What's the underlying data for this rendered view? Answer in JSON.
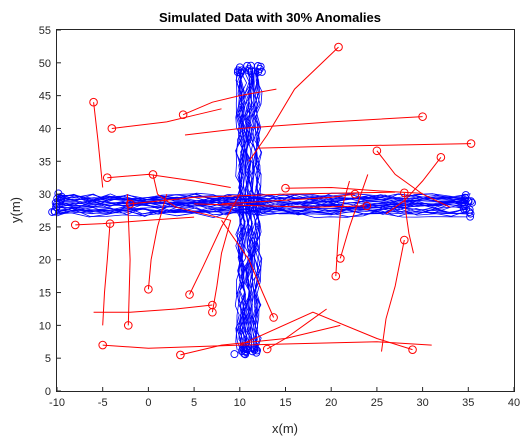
{
  "chart_data": {
    "type": "line",
    "title": "Simulated Data with 30% Anomalies",
    "xlabel": "x(m)",
    "ylabel": "y(m)",
    "xlim": [
      -10,
      40
    ],
    "ylim": [
      0,
      55
    ],
    "xticks": [
      -10,
      -5,
      0,
      5,
      10,
      15,
      20,
      25,
      30,
      35,
      40
    ],
    "yticks": [
      0,
      5,
      10,
      15,
      20,
      25,
      30,
      35,
      40,
      45,
      50,
      55
    ],
    "grid": false,
    "colors": {
      "normal": "#0000ff",
      "anomaly": "#ff0000"
    },
    "normal_tracks": {
      "description_of_pattern": "cross",
      "horizontal": {
        "x_range": [
          -10,
          35
        ],
        "y_center": 28.5,
        "y_spread": 1.5,
        "count": 30
      },
      "vertical": {
        "y_range": [
          6,
          49
        ],
        "x_center": 11,
        "x_spread": 1.2,
        "count": 30
      }
    },
    "anomaly_tracks": [
      {
        "x": [
          -6,
          -5.5,
          -5
        ],
        "y": [
          44,
          38,
          31
        ]
      },
      {
        "x": [
          -4,
          2,
          5,
          8
        ],
        "y": [
          40,
          41,
          42,
          43
        ]
      },
      {
        "x": [
          -4.5,
          0,
          5,
          9
        ],
        "y": [
          32.5,
          33,
          32,
          31
        ]
      },
      {
        "x": [
          -4.2,
          -4.5,
          -4.8,
          -5
        ],
        "y": [
          25.5,
          20,
          15,
          10
        ]
      },
      {
        "x": [
          -5,
          0,
          10,
          25,
          31
        ],
        "y": [
          7,
          6.5,
          7,
          7.5,
          7
        ]
      },
      {
        "x": [
          -2.2,
          -2,
          -2.3
        ],
        "y": [
          10,
          20,
          30
        ]
      },
      {
        "x": [
          -2,
          5,
          15,
          27
        ],
        "y": [
          28.5,
          29.5,
          30,
          30.3
        ]
      },
      {
        "x": [
          0,
          0.3,
          1,
          2
        ],
        "y": [
          15.5,
          20,
          25,
          30
        ]
      },
      {
        "x": [
          0.5,
          1,
          3,
          6,
          9
        ],
        "y": [
          33,
          30,
          28,
          27,
          26
        ]
      },
      {
        "x": [
          3.8,
          7,
          10,
          14
        ],
        "y": [
          42.1,
          44,
          45,
          46
        ]
      },
      {
        "x": [
          4.5,
          6,
          8,
          10
        ],
        "y": [
          14.7,
          19,
          25,
          30
        ]
      },
      {
        "x": [
          7,
          7.5,
          8,
          9
        ],
        "y": [
          12,
          16,
          21,
          26
        ]
      },
      {
        "x": [
          7,
          3,
          -2,
          -6
        ],
        "y": [
          13.1,
          12.5,
          12,
          12
        ]
      },
      {
        "x": [
          13.7,
          12.5,
          11,
          8
        ],
        "y": [
          11.2,
          15,
          20,
          26
        ]
      },
      {
        "x": [
          15,
          20,
          25,
          30
        ],
        "y": [
          30.9,
          31,
          30.5,
          30.1
        ]
      },
      {
        "x": [
          20.8,
          16,
          13,
          11
        ],
        "y": [
          52.4,
          46,
          39,
          35
        ]
      },
      {
        "x": [
          21,
          22,
          23,
          24
        ],
        "y": [
          20.2,
          25,
          29,
          33
        ]
      },
      {
        "x": [
          20.5,
          20.7,
          21,
          22
        ],
        "y": [
          17.5,
          22,
          27,
          32
        ]
      },
      {
        "x": [
          22.6,
          20,
          14,
          8
        ],
        "y": [
          30,
          29.5,
          29,
          28.5
        ]
      },
      {
        "x": [
          25,
          27,
          30,
          33
        ],
        "y": [
          36.6,
          33,
          30,
          28
        ]
      },
      {
        "x": [
          28,
          28.2,
          28.5,
          29
        ],
        "y": [
          30.2,
          27,
          24,
          21
        ]
      },
      {
        "x": [
          28,
          27,
          26,
          25.5
        ],
        "y": [
          23,
          16,
          11,
          6
        ]
      },
      {
        "x": [
          28.9,
          25,
          18,
          10
        ],
        "y": [
          6.3,
          8,
          12,
          7
        ]
      },
      {
        "x": [
          32,
          30,
          28,
          26
        ],
        "y": [
          35.6,
          32,
          29,
          27
        ]
      },
      {
        "x": [
          35.3,
          28,
          20,
          12
        ],
        "y": [
          37.7,
          37.5,
          37.3,
          37
        ]
      },
      {
        "x": [
          30,
          20,
          10,
          4
        ],
        "y": [
          41.8,
          41,
          40,
          39
        ]
      },
      {
        "x": [
          23.9,
          18,
          10,
          5
        ],
        "y": [
          28.2,
          28,
          28.3,
          28.5
        ]
      },
      {
        "x": [
          -8,
          -5,
          0,
          5
        ],
        "y": [
          25.3,
          25.5,
          26,
          26.5
        ]
      },
      {
        "x": [
          13,
          15,
          18,
          19.5
        ],
        "y": [
          6.4,
          8,
          11,
          12.5
        ]
      },
      {
        "x": [
          3.5,
          8,
          15,
          21
        ],
        "y": [
          5.5,
          7,
          8,
          10
        ]
      }
    ]
  }
}
